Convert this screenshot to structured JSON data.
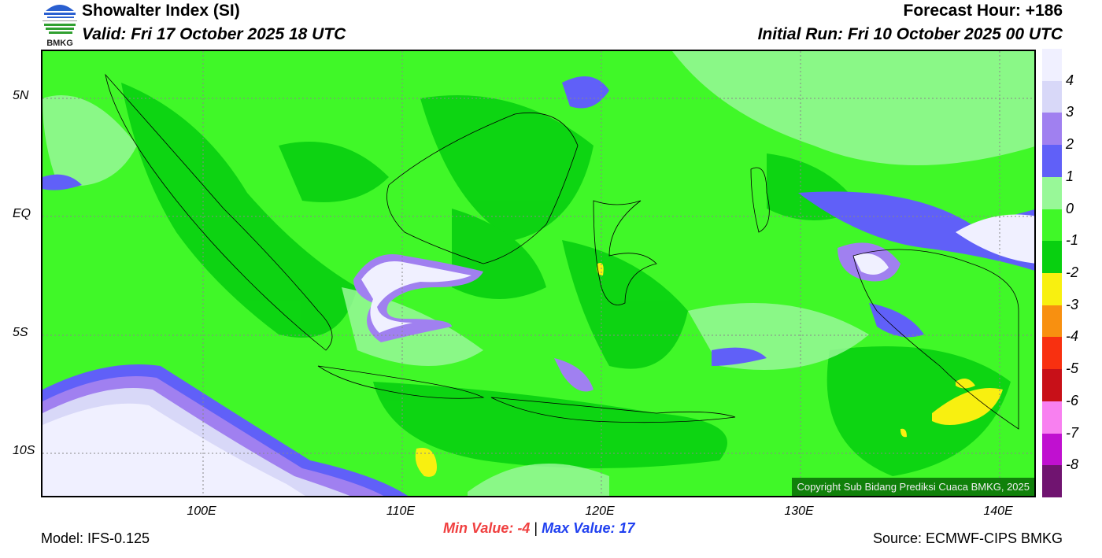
{
  "header": {
    "logo_text": "BMKG",
    "title": "Showalter Index (SI)",
    "valid": "Valid: Fri 17 October 2025 18 UTC",
    "forecast_hour": "Forecast Hour: +186",
    "initial_run": "Initial Run: Fri 10 October 2025 00 UTC"
  },
  "map": {
    "lat_labels": [
      "5N",
      "EQ",
      "5S",
      "10S"
    ],
    "lon_labels": [
      "100E",
      "110E",
      "120E",
      "130E",
      "140E"
    ],
    "copyright": "Copyright Sub Bidang Prediksi Cuaca BMKG, 2025"
  },
  "colorbar": {
    "colors": [
      "#f0f0ff",
      "#d8d8f8",
      "#a080f0",
      "#6060f8",
      "#98f898",
      "#40f828",
      "#08d010",
      "#f8f010",
      "#f89010",
      "#f83010",
      "#c81018",
      "#f880f0",
      "#c010d0",
      "#701470"
    ],
    "labels": [
      "4",
      "3",
      "2",
      "1",
      "0",
      "-1",
      "-2",
      "-3",
      "-4",
      "-5",
      "-6",
      "-7",
      "-8"
    ]
  },
  "footer": {
    "min_label": "Min Value:  -4",
    "separator": "|",
    "max_label": "Max Value:  17",
    "model": "Model: IFS-0.125",
    "source": "Source: ECMWF-CIPS BMKG"
  }
}
